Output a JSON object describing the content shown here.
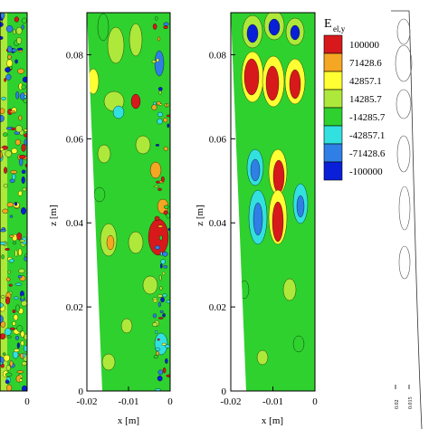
{
  "chart_data": {
    "type": "heatmap",
    "colorbar": {
      "title_main": "E",
      "title_sub": "el,y",
      "levels": [
        100000,
        71428.6,
        42857.1,
        14285.7,
        -14285.7,
        -42857.1,
        -71428.6,
        -100000
      ],
      "labels": [
        "100000",
        "71428.6",
        "42857.1",
        "14285.7",
        "-14285.7",
        "-42857.1",
        "-71428.6",
        "-100000"
      ],
      "colors": [
        "#d7191c",
        "#f5a623",
        "#ffff33",
        "#aee83a",
        "#2fd12f",
        "#33e0e0",
        "#2f7fe6",
        "#0a1fd8"
      ]
    },
    "panels": [
      {
        "id": "left-partial",
        "xticks": [
          "0"
        ],
        "zticks": [],
        "xlabel": "",
        "ylabel": ""
      },
      {
        "id": "middle",
        "xticks": [
          "-0.02",
          "-0.01",
          "0"
        ],
        "zticks": [
          "0",
          "0.02",
          "0.04",
          "0.06",
          "0.08"
        ],
        "xlim": [
          -0.02,
          0
        ],
        "ylim": [
          0,
          0.09
        ],
        "xlabel": "x [m]",
        "ylabel": "z [m]"
      },
      {
        "id": "right",
        "xticks": [
          "-0.02",
          "-0.01",
          "0"
        ],
        "zticks": [
          "0",
          "0.02",
          "0.04",
          "0.06",
          "0.08"
        ],
        "xlim": [
          -0.02,
          0
        ],
        "ylim": [
          0,
          0.09
        ],
        "xlabel": "x [m]",
        "ylabel": "z [m]"
      },
      {
        "id": "contour-partial",
        "xticks": [
          "0.02",
          "0.015"
        ],
        "zticks": [],
        "xlabel": "",
        "ylabel": ""
      }
    ]
  }
}
